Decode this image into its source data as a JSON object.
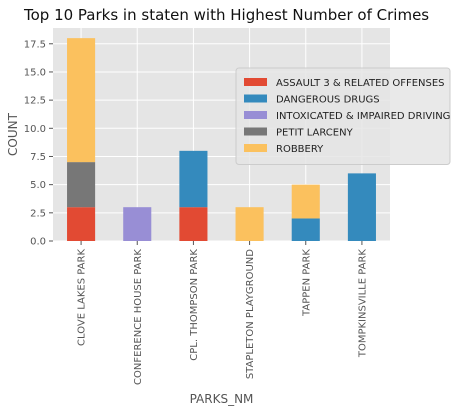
{
  "chart_data": {
    "type": "bar",
    "stacked": true,
    "title": "Top 10 Parks in staten with Highest Number of Crimes",
    "xlabel": "PARKS_NM",
    "ylabel": "COUNT",
    "ylim": [
      0,
      18.9
    ],
    "yticks": [
      0.0,
      2.5,
      5.0,
      7.5,
      10.0,
      12.5,
      15.0,
      17.5
    ],
    "ytick_labels": [
      "0.0",
      "2.5",
      "5.0",
      "7.5",
      "10.0",
      "12.5",
      "15.0",
      "17.5"
    ],
    "grid": true,
    "legend_position": "right",
    "categories": [
      "CLOVE LAKES PARK",
      "CONFERENCE HOUSE PARK",
      "CPL. THOMPSON PARK",
      "STAPLETON PLAYGROUND",
      "TAPPEN PARK",
      "TOMPKINSVILLE PARK"
    ],
    "series": [
      {
        "name": "ASSAULT 3 & RELATED OFFENSES",
        "color": "#E24A33",
        "values": [
          3,
          0,
          3,
          0,
          0,
          0
        ]
      },
      {
        "name": "DANGEROUS DRUGS",
        "color": "#348ABD",
        "values": [
          0,
          0,
          5,
          0,
          2,
          6
        ]
      },
      {
        "name": "INTOXICATED & IMPAIRED DRIVING",
        "color": "#988ED5",
        "values": [
          0,
          3,
          0,
          0,
          0,
          0
        ]
      },
      {
        "name": "PETIT LARCENY",
        "color": "#777777",
        "values": [
          4,
          0,
          0,
          0,
          0,
          0
        ]
      },
      {
        "name": "ROBBERY",
        "color": "#FBC15E",
        "values": [
          11,
          0,
          0,
          3,
          3,
          0
        ]
      }
    ],
    "colors": {
      "plot_background": "#E5E5E5",
      "grid": "#FFFFFF"
    }
  }
}
